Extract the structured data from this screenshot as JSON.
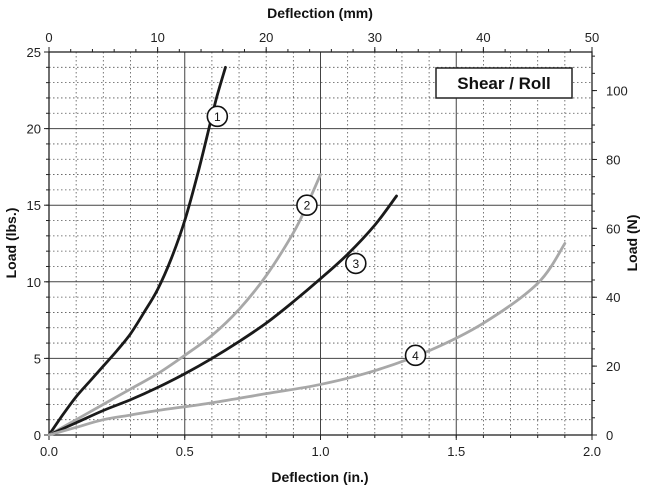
{
  "chart_data": {
    "type": "line",
    "label_box": "Shear / Roll",
    "xlabel": "Deflection (in.)",
    "ylabel": "Load (lbs.)",
    "x2label": "Deflection (mm)",
    "y2label": "Load (N)",
    "xlim": [
      0,
      2.0
    ],
    "ylim": [
      0,
      25
    ],
    "x2lim": [
      0,
      50
    ],
    "y2lim": [
      0,
      111.2
    ],
    "x_ticks": [
      "0.0",
      "0.5",
      "1.0",
      "1.5",
      "2.0"
    ],
    "y_ticks": [
      "0",
      "5",
      "10",
      "15",
      "20",
      "25"
    ],
    "x2_ticks": [
      "0",
      "10",
      "20",
      "30",
      "40",
      "50"
    ],
    "y2_ticks": [
      "0",
      "20",
      "40",
      "60",
      "80",
      "100"
    ],
    "grid": true,
    "series": [
      {
        "name": "1",
        "label": "1",
        "color": "#1a1a1a",
        "x": [
          0,
          0.05,
          0.1,
          0.15,
          0.2,
          0.25,
          0.3,
          0.35,
          0.4,
          0.45,
          0.5,
          0.55,
          0.6,
          0.62,
          0.65
        ],
        "y": [
          0,
          1.3,
          2.5,
          3.5,
          4.5,
          5.5,
          6.6,
          8.0,
          9.5,
          11.5,
          14.0,
          17.2,
          20.8,
          22.2,
          24.0
        ]
      },
      {
        "name": "2",
        "label": "2",
        "color": "#a8a8a8",
        "x": [
          0,
          0.1,
          0.2,
          0.3,
          0.4,
          0.5,
          0.6,
          0.7,
          0.8,
          0.9,
          0.95,
          1.0
        ],
        "y": [
          0,
          1.0,
          2.0,
          3.0,
          4.0,
          5.2,
          6.5,
          8.2,
          10.4,
          13.2,
          15.0,
          17.0
        ]
      },
      {
        "name": "3",
        "label": "3",
        "color": "#1a1a1a",
        "x": [
          0,
          0.1,
          0.2,
          0.3,
          0.4,
          0.5,
          0.6,
          0.7,
          0.8,
          0.9,
          1.0,
          1.1,
          1.2,
          1.28
        ],
        "y": [
          0,
          0.8,
          1.6,
          2.3,
          3.1,
          4.0,
          5.0,
          6.1,
          7.3,
          8.7,
          10.2,
          11.8,
          13.7,
          15.6
        ]
      },
      {
        "name": "4",
        "label": "4",
        "color": "#a8a8a8",
        "x": [
          0,
          0.1,
          0.2,
          0.3,
          0.4,
          0.6,
          0.8,
          1.0,
          1.2,
          1.4,
          1.6,
          1.8,
          1.9
        ],
        "y": [
          0,
          0.5,
          1.0,
          1.3,
          1.6,
          2.1,
          2.7,
          3.3,
          4.2,
          5.5,
          7.3,
          9.9,
          12.5
        ]
      }
    ],
    "badges": [
      {
        "label": "1",
        "series": "1",
        "x": 0.62,
        "y": 20.8
      },
      {
        "label": "2",
        "series": "2",
        "x": 0.95,
        "y": 15.0
      },
      {
        "label": "3",
        "series": "3",
        "x": 1.13,
        "y": 11.2
      },
      {
        "label": "4",
        "series": "4",
        "x": 1.35,
        "y": 5.2
      }
    ]
  }
}
